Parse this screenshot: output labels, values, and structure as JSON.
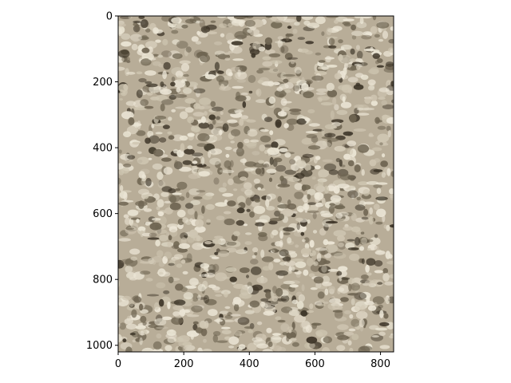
{
  "figure": {
    "background": "#ffffff",
    "image_description_icon": "textured-carpet-image",
    "x_ticks": [
      "0",
      "200",
      "400",
      "600",
      "800"
    ],
    "y_ticks": [
      "0",
      "200",
      "400",
      "600",
      "800",
      "1000"
    ],
    "x_range": [
      0,
      840
    ],
    "y_range": [
      1020,
      0
    ],
    "palette": {
      "base": "#b8ad98",
      "light": "#ece6d6",
      "mid": "#cfc6b2",
      "dark": "#6f6552",
      "shadow": "#3d3528"
    }
  }
}
